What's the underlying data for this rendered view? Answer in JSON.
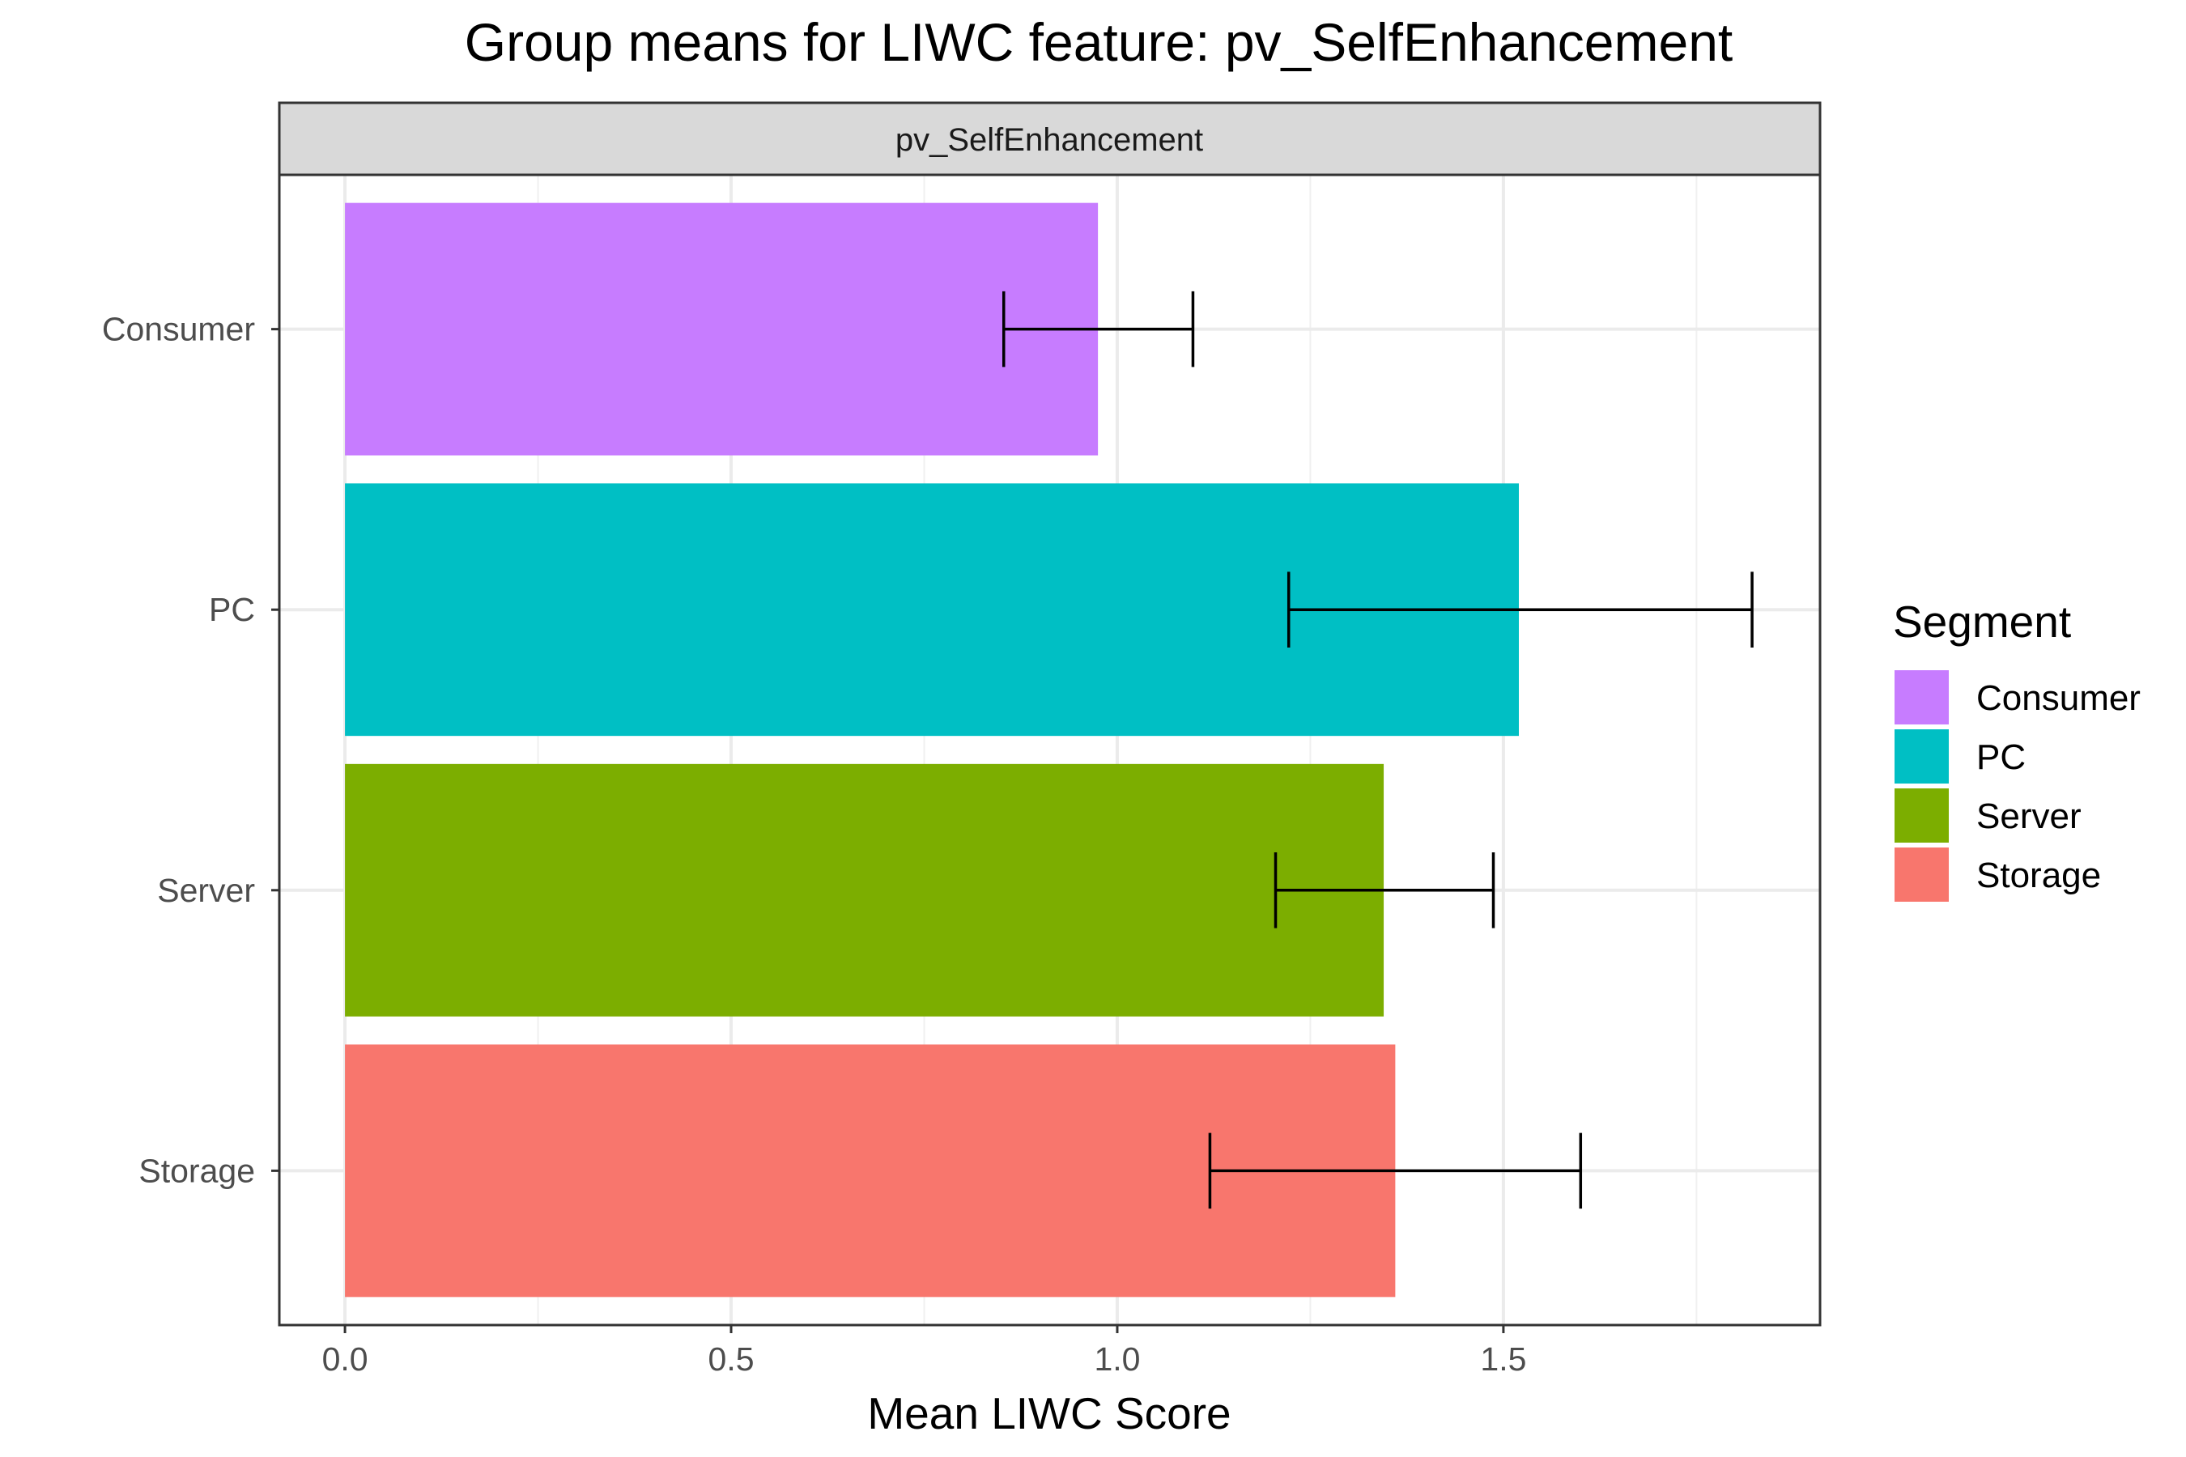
{
  "chart_data": {
    "type": "bar",
    "orientation": "horizontal",
    "title": "Group means for LIWC feature: pv_SelfEnhancement",
    "facet_label": "pv_SelfEnhancement",
    "xlabel": "Mean LIWC Score",
    "ylabel": "",
    "xlim": [
      -0.085,
      1.91
    ],
    "x_ticks": [
      0.0,
      0.5,
      1.0,
      1.5
    ],
    "x_tick_labels": [
      "0.0",
      "0.5",
      "1.0",
      "1.5"
    ],
    "grid": true,
    "legend_position": "right",
    "legend_title": "Segment",
    "categories": [
      "Consumer",
      "PC",
      "Server",
      "Storage"
    ],
    "values": [
      0.975,
      1.52,
      1.345,
      1.36
    ],
    "error_low": [
      0.853,
      1.222,
      1.205,
      1.12
    ],
    "error_high": [
      1.098,
      1.822,
      1.487,
      1.6
    ],
    "colors": [
      "#C77CFF",
      "#00BFC4",
      "#7CAE00",
      "#F8766D"
    ],
    "legend": [
      {
        "label": "Consumer",
        "color": "#C77CFF"
      },
      {
        "label": "PC",
        "color": "#00BFC4"
      },
      {
        "label": "Server",
        "color": "#7CAE00"
      },
      {
        "label": "Storage",
        "color": "#F8766D"
      }
    ]
  }
}
